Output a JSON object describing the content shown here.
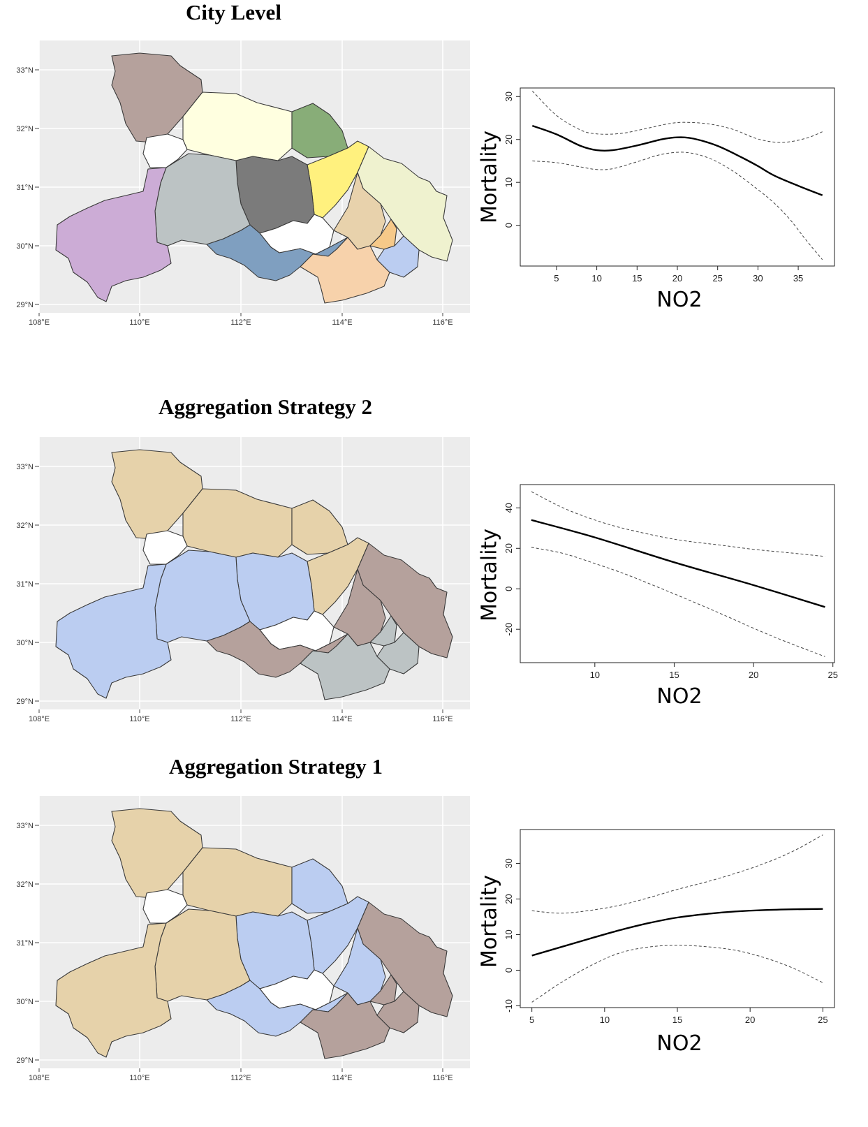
{
  "maps": [
    {
      "title": "City Level",
      "lat_labels": [
        "33°N",
        "32°N",
        "31°N",
        "30°N",
        "29°N"
      ],
      "lon_labels": [
        "108°E",
        "110°E",
        "112°E",
        "114°E",
        "116°E"
      ],
      "region_colors": {
        "shiyan": "#b5a19c",
        "xiangyang": "#ffffe0",
        "suizhou": "#88ad78",
        "xiaogan": "#fff17e",
        "huanggang": "#eff2cf",
        "shennongjia": "#ffffff",
        "yichang": "#bcc3c4",
        "jingmen": "#7b7b7b",
        "enshi": "#ccacd6",
        "jingzhou": "#7f9fc0",
        "tianmen": "#ffffff",
        "wuhan": "#e8d2ac",
        "ezhou": "#f6c989",
        "xianning": "#f7d2ab",
        "huangshi": "#bbcdf1"
      }
    },
    {
      "title": "Aggregation Strategy 2",
      "lat_labels": [
        "33°N",
        "32°N",
        "31°N",
        "30°N",
        "29°N"
      ],
      "lon_labels": [
        "108°E",
        "110°E",
        "112°E",
        "114°E",
        "116°E"
      ],
      "region_colors": {
        "shiyan": "#e6d2aa",
        "xiangyang": "#e6d2aa",
        "suizhou": "#e6d2aa",
        "xiaogan": "#e6d2aa",
        "huanggang": "#b5a19c",
        "shennongjia": "#ffffff",
        "yichang": "#bbcdf1",
        "jingmen": "#bbcdf1",
        "enshi": "#bbcdf1",
        "jingzhou": "#b5a19c",
        "tianmen": "#ffffff",
        "wuhan": "#b5a19c",
        "ezhou": "#bcc3c4",
        "xianning": "#bcc3c4",
        "huangshi": "#bcc3c4"
      }
    },
    {
      "title": "Aggregation Strategy 1",
      "lat_labels": [
        "33°N",
        "32°N",
        "31°N",
        "30°N",
        "29°N"
      ],
      "lon_labels": [
        "108°E",
        "110°E",
        "112°E",
        "114°E",
        "116°E"
      ],
      "region_colors": {
        "shiyan": "#e6d2aa",
        "xiangyang": "#e6d2aa",
        "suizhou": "#bbcdf1",
        "xiaogan": "#bbcdf1",
        "huanggang": "#b5a19c",
        "shennongjia": "#ffffff",
        "yichang": "#e6d2aa",
        "jingmen": "#bbcdf1",
        "enshi": "#e6d2aa",
        "jingzhou": "#bbcdf1",
        "tianmen": "#ffffff",
        "wuhan": "#bbcdf1",
        "ezhou": "#b5a19c",
        "xianning": "#b5a19c",
        "huangshi": "#b5a19c"
      }
    }
  ],
  "chart_data": [
    {
      "type": "line",
      "xlabel": "NO2",
      "ylabel": "Mortality",
      "xlim": [
        0.5,
        39.5
      ],
      "ylim": [
        -9.5,
        32
      ],
      "xticks": [
        5,
        10,
        15,
        20,
        25,
        30,
        35
      ],
      "yticks": [
        0,
        10,
        20,
        30
      ],
      "series": [
        {
          "style": "solid",
          "x": [
            2,
            5,
            8,
            10,
            12,
            15,
            18,
            20,
            22,
            25,
            28,
            30,
            32,
            35,
            38
          ],
          "values": [
            23.2,
            21.2,
            18.5,
            17.5,
            17.5,
            18.6,
            20,
            20.5,
            20.2,
            18.5,
            15.8,
            13.8,
            11.6,
            9.2,
            7
          ]
        },
        {
          "style": "dashed",
          "x": [
            2,
            5,
            8,
            10,
            13,
            16,
            19,
            21,
            24,
            27,
            30,
            33,
            36,
            38
          ],
          "values": [
            31.3,
            25.6,
            22.2,
            21.3,
            21.4,
            22.5,
            23.7,
            24,
            23.6,
            22.3,
            20.1,
            19.3,
            20.3,
            21.8
          ]
        },
        {
          "style": "dashed",
          "x": [
            2,
            5,
            8,
            10,
            12,
            15,
            18,
            21,
            24,
            27,
            30,
            32,
            34,
            36,
            38
          ],
          "values": [
            15,
            14.6,
            13.6,
            13,
            13.2,
            14.8,
            16.5,
            17,
            15.6,
            12.5,
            8.3,
            5.2,
            1.3,
            -3.5,
            -8
          ]
        }
      ]
    },
    {
      "type": "line",
      "xlabel": "NO2",
      "ylabel": "Mortality",
      "xlim": [
        5.3,
        25.1
      ],
      "ylim": [
        -36.5,
        51.5
      ],
      "xticks": [
        10,
        15,
        20,
        25
      ],
      "yticks": [
        -20,
        0,
        20,
        40
      ],
      "series": [
        {
          "style": "solid",
          "x": [
            6,
            10,
            15,
            20,
            24.5
          ],
          "values": [
            34,
            25.4,
            13.1,
            1.8,
            -9
          ]
        },
        {
          "style": "dashed",
          "x": [
            6,
            8,
            10,
            12,
            15,
            18,
            20,
            22,
            24.5
          ],
          "values": [
            48,
            40,
            34,
            29.5,
            24.5,
            21.5,
            19.5,
            18,
            16
          ]
        },
        {
          "style": "dashed",
          "x": [
            6,
            8,
            10,
            12,
            15,
            18,
            20,
            22,
            24.5
          ],
          "values": [
            20.5,
            17.5,
            12.5,
            7,
            -2.5,
            -12.5,
            -19.5,
            -26,
            -33.5
          ]
        }
      ]
    },
    {
      "type": "line",
      "xlabel": "NO2",
      "ylabel": "Mortality",
      "xlim": [
        4.2,
        25.8
      ],
      "ylim": [
        -10.5,
        39.5
      ],
      "xticks": [
        5,
        10,
        15,
        20,
        25
      ],
      "yticks": [
        -10,
        0,
        10,
        20,
        30
      ],
      "series": [
        {
          "style": "solid",
          "x": [
            5,
            7,
            9,
            11,
            13,
            15,
            17,
            19,
            21,
            23,
            25
          ],
          "values": [
            4.1,
            6.5,
            8.9,
            11.2,
            13.2,
            14.8,
            15.8,
            16.5,
            16.9,
            17.1,
            17.2
          ]
        },
        {
          "style": "dashed",
          "x": [
            5,
            7,
            9,
            11,
            13,
            15,
            17,
            19,
            21,
            23,
            25
          ],
          "values": [
            16.7,
            16,
            16.8,
            18.2,
            20.3,
            22.7,
            24.8,
            27.2,
            30,
            33.5,
            38
          ]
        },
        {
          "style": "dashed",
          "x": [
            5,
            7,
            9,
            11,
            13,
            15,
            17,
            19,
            21,
            23,
            25
          ],
          "values": [
            -9,
            -3.5,
            1.2,
            4.8,
            6.5,
            7,
            6.6,
            5.6,
            3.5,
            0.5,
            -3.5
          ]
        }
      ]
    }
  ]
}
